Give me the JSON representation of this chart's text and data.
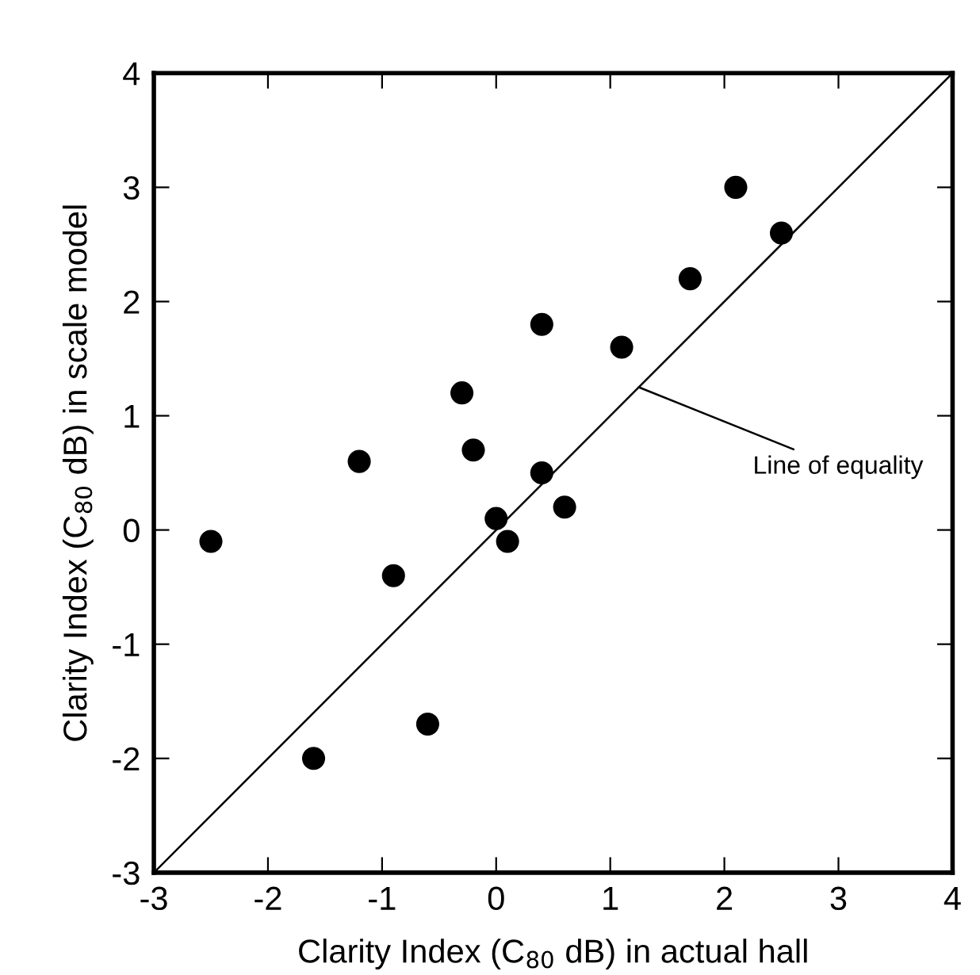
{
  "chart_data": {
    "type": "scatter",
    "xlabel": "Clarity Index (C$_{80}$ dB) in actual hall",
    "ylabel": "Clarity Index (C$_{80}$ dB) in scale model",
    "series": [
      {
        "color": "#000000",
        "marker": "circle",
        "x": [
          -2.5,
          -1.6,
          -1.2,
          -0.9,
          -0.6,
          -0.3,
          -0.2,
          0,
          0.1,
          0.4,
          0.4,
          0.6,
          1.1,
          1.7,
          2.1,
          2.5
        ],
        "values": [
          -0.1,
          -2,
          0.6,
          -0.4,
          -1.7,
          1.2,
          0.7,
          0.1,
          -0.1,
          1.8,
          0.5,
          0.2,
          1.6,
          2.2,
          3,
          2.6
        ]
      },
      {
        "type": "line",
        "color": "#000000",
        "line_style": "solid",
        "x": [
          -3,
          4
        ],
        "values": [
          -3,
          4
        ]
      }
    ],
    "annotations": [
      {
        "text": "Line of equality",
        "x": 1.25,
        "y": 1.25
      }
    ],
    "xlim": [
      -3,
      4
    ],
    "ylim": [
      -3,
      4
    ],
    "xticks": [
      -3,
      -2,
      -1,
      0,
      1,
      2,
      3,
      4
    ],
    "yticks": [
      -3,
      -2,
      -1,
      0,
      1,
      2,
      3,
      4
    ],
    "grid": false,
    "legend": false
  }
}
